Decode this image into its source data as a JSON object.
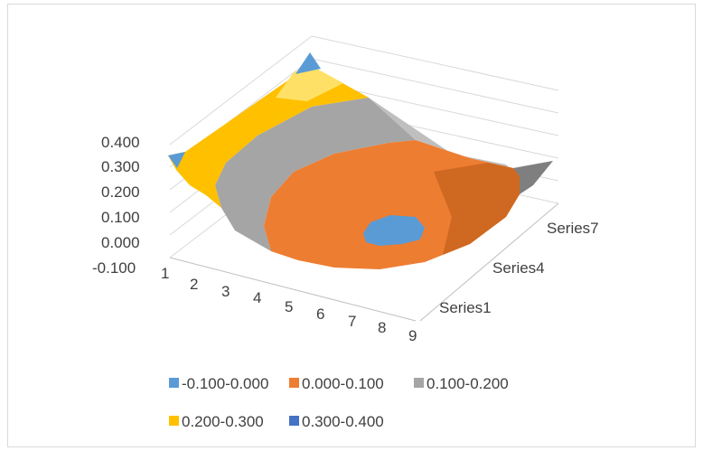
{
  "chart_data": {
    "type": "surface",
    "title": "",
    "z_axis": {
      "ticks": [
        "0.400",
        "0.300",
        "0.200",
        "0.100",
        "0.000",
        "-0.100"
      ],
      "range": [
        -0.1,
        0.4
      ]
    },
    "x_axis": {
      "categories": [
        "1",
        "2",
        "3",
        "4",
        "5",
        "6",
        "7",
        "8",
        "9"
      ]
    },
    "depth_axis": {
      "labels": [
        "Series7",
        "Series4",
        "Series1"
      ]
    },
    "legend": {
      "position": "bottom",
      "items": [
        {
          "label": "-0.100-0.000",
          "color": "#5b9bd5"
        },
        {
          "label": "0.000-0.100",
          "color": "#ed7d31"
        },
        {
          "label": "0.100-0.200",
          "color": "#a5a5a5"
        },
        {
          "label": "0.200-0.300",
          "color": "#ffc000"
        },
        {
          "label": "0.300-0.400",
          "color": "#4472c4"
        }
      ]
    },
    "gridlines": true
  }
}
